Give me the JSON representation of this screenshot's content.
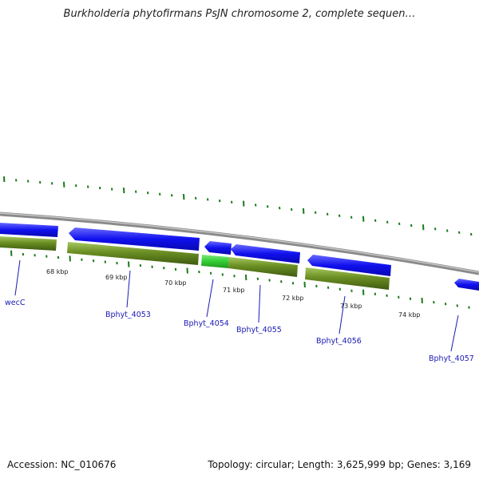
{
  "title": "Burkholderia phytofirmans PsJN chromosome 2, complete sequen…",
  "footer": {
    "accession": "Accession: NC_010676",
    "summary": "Topology: circular; Length: 3,625,999 bp; Genes: 3,169"
  },
  "kbp_ticks": [
    "68 kbp",
    "69 kbp",
    "70 kbp",
    "71 kbp",
    "72 kbp",
    "73 kbp",
    "74 kbp"
  ],
  "gene_labels": [
    "wecC",
    "Bphyt_4053",
    "Bphyt_4054",
    "Bphyt_4055",
    "Bphyt_4056",
    "Bphyt_4057"
  ],
  "colors": {
    "gene": "#1010ee",
    "cds": "#6b8e23",
    "highlight": "#33cc33",
    "backbone": "#8a8a8a",
    "ticks": "#1a7a1a",
    "label": "#1a1ab4"
  }
}
